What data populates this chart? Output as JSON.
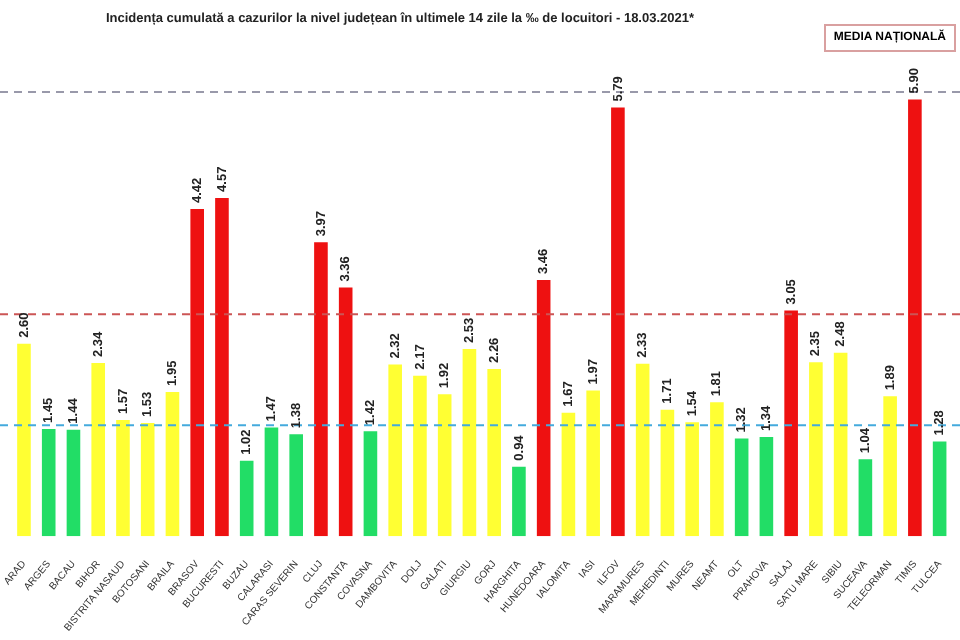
{
  "chart_data": {
    "type": "bar",
    "title": "Incidența cumulată a cazurilor la nivel județean în ultimele 14 zile la ‰ de locuitori - 18.03.2021*",
    "categories": [
      "ARAD",
      "ARGES",
      "BACAU",
      "BIHOR",
      "BISTRITA NASAUD",
      "BOTOSANI",
      "BRAILA",
      "BRASOV",
      "BUCURESTI",
      "BUZAU",
      "CALARASI",
      "CARAS SEVERIN",
      "CLUJ",
      "CONSTANTA",
      "COVASNA",
      "DAMBOVITA",
      "DOLJ",
      "GALATI",
      "GIURGIU",
      "GORJ",
      "HARGHITA",
      "HUNEDOARA",
      "IALOMITA",
      "IASI",
      "ILFOV",
      "MARAMURES",
      "MEHEDINTI",
      "MURES",
      "NEAMT",
      "OLT",
      "PRAHOVA",
      "SALAJ",
      "SATU MARE",
      "SIBIU",
      "SUCEAVA",
      "TELEORMAN",
      "TIMIS",
      "TULCEA"
    ],
    "values": [
      2.6,
      1.45,
      1.44,
      2.34,
      1.57,
      1.53,
      1.95,
      4.42,
      4.57,
      1.02,
      1.47,
      1.38,
      3.97,
      3.36,
      1.42,
      2.32,
      2.17,
      1.92,
      2.53,
      2.26,
      0.94,
      3.46,
      1.67,
      1.97,
      5.79,
      2.33,
      1.71,
      1.54,
      1.81,
      1.32,
      1.34,
      3.05,
      2.35,
      2.48,
      1.04,
      1.89,
      5.9,
      1.28
    ],
    "colors": [
      "#ffff33",
      "#22dd66",
      "#22dd66",
      "#ffff33",
      "#ffff33",
      "#ffff33",
      "#ffff33",
      "#ee1111",
      "#ee1111",
      "#22dd66",
      "#22dd66",
      "#22dd66",
      "#ee1111",
      "#ee1111",
      "#22dd66",
      "#ffff33",
      "#ffff33",
      "#ffff33",
      "#ffff33",
      "#ffff33",
      "#22dd66",
      "#ee1111",
      "#ffff33",
      "#ffff33",
      "#ee1111",
      "#ffff33",
      "#ffff33",
      "#ffff33",
      "#ffff33",
      "#22dd66",
      "#22dd66",
      "#ee1111",
      "#ffff33",
      "#ffff33",
      "#22dd66",
      "#ffff33",
      "#ee1111",
      "#22dd66"
    ],
    "value_labels": [
      "2.60",
      "1.45",
      "1.44",
      "2.34",
      "1.57",
      "1.53",
      "1.95",
      "4.42",
      "4.57",
      "1.02",
      "1.47",
      "1.38",
      "3.97",
      "3.36",
      "1.42",
      "2.32",
      "2.17",
      "1.92",
      "2.53",
      "2.26",
      "0.94",
      "3.46",
      "1.67",
      "1.97",
      "5.79",
      "2.33",
      "1.71",
      "1.54",
      "1.81",
      "1.32",
      "1.34",
      "3.05",
      "2.35",
      "2.48",
      "1.04",
      "1.89",
      "5.90",
      "1.28"
    ],
    "ref_lines": [
      {
        "axis": "y",
        "value": 6,
        "color": "#9999aa",
        "line_style": "dashed"
      },
      {
        "axis": "y",
        "value": 3,
        "color": "#cc5555",
        "line_style": "dashed"
      },
      {
        "axis": "y",
        "value": 1.5,
        "color": "#44aadd",
        "line_style": "dashed"
      }
    ],
    "annotations": [
      "MEDIA NAȚIONALĂ"
    ],
    "legend": false,
    "grid": false,
    "tick_labels": "x"
  }
}
